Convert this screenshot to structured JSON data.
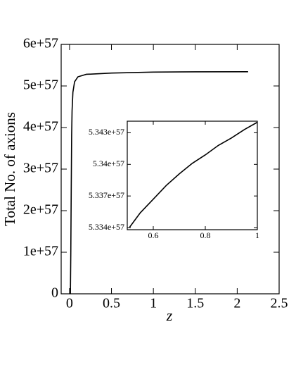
{
  "chart_data": [
    {
      "type": "line",
      "xlabel": "z",
      "ylabel": "Total No. of axions",
      "x": [
        0.01,
        0.015,
        0.02,
        0.025,
        0.03,
        0.04,
        0.06,
        0.1,
        0.2,
        0.5,
        1,
        1.5,
        2.13
      ],
      "values": [
        0,
        1e+57,
        2.5e+57,
        3.8e+57,
        4.4e+57,
        4.85e+57,
        5.1e+57,
        5.22e+57,
        5.28e+57,
        5.31e+57,
        5.334e+57,
        5.34e+57,
        5.343e+57
      ],
      "color": "#000000",
      "xlim": [
        -0.1,
        2.5
      ],
      "xticks": [
        0,
        0.5,
        1,
        1.5,
        2,
        2.5
      ],
      "ylim": [
        0,
        6e+57
      ],
      "yticks": [
        0,
        {
          "value": 1e+57,
          "label": "1e+57"
        },
        {
          "value": 2e+57,
          "label": "2e+57"
        },
        {
          "value": 3e+57,
          "label": "3e+57"
        },
        {
          "value": 4e+57,
          "label": "4e+57"
        },
        {
          "value": 5e+57,
          "label": "5e+57"
        },
        {
          "value": 6e+57,
          "label": "6e+57"
        }
      ]
    },
    {
      "type": "line",
      "x": [
        0.508,
        0.55,
        0.6,
        0.65,
        0.7,
        0.75,
        0.8,
        0.85,
        0.9,
        0.95,
        1
      ],
      "values": [
        5.334e+57,
        5.3354e+57,
        5.3367e+57,
        5.338e+57,
        5.3391e+57,
        5.3401e+57,
        5.3409e+57,
        5.3418e+57,
        5.3425e+57,
        5.3433e+57,
        5.344e+57
      ],
      "color": "#000000",
      "xlim": [
        0.5,
        1
      ],
      "xticks": [
        0.6,
        0.8,
        1
      ],
      "ylim": [
        5.3338e+57,
        5.3441e+57
      ],
      "yticks": [
        {
          "value": 5.334e+57,
          "label": "5.334e+57"
        },
        {
          "value": 5.337e+57,
          "label": "5.337e+57"
        },
        {
          "value": 5.34e+57,
          "label": "5.34e+57"
        },
        {
          "value": 5.343e+57,
          "label": "5.343e+57"
        }
      ]
    }
  ]
}
